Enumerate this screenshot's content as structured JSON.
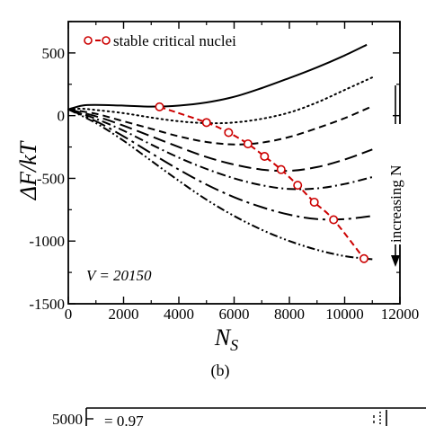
{
  "chart_data": {
    "type": "line",
    "title": "",
    "xlabel_main": "N",
    "xlabel_sub": "S",
    "ylabel": "ΔF/kT",
    "xlim": [
      0,
      12000
    ],
    "ylim": [
      -1500,
      750
    ],
    "x_ticks": [
      0,
      2000,
      4000,
      6000,
      8000,
      10000,
      12000
    ],
    "x_tick_labels": [
      "0",
      "2000",
      "4000",
      "6000",
      "8000",
      "10000",
      "12000"
    ],
    "y_ticks": [
      500,
      0,
      -500,
      -1000,
      -1500
    ],
    "y_tick_labels": [
      "500",
      "0",
      "-500",
      "-1000",
      "-1500"
    ],
    "grid": false,
    "legend": {
      "position": "top-left",
      "entries": [
        "stable critical nuclei"
      ]
    },
    "annotations": {
      "volume": "V = 20150",
      "arrow_label": "increasing N",
      "panel": "(b)"
    },
    "series": [
      {
        "style": "solid",
        "x": [
          0,
          500,
          1000,
          2000,
          3000,
          4000,
          5000,
          6000,
          7000,
          8000,
          9000,
          10000,
          10800
        ],
        "y": [
          50,
          80,
          85,
          80,
          72,
          80,
          105,
          150,
          220,
          300,
          385,
          480,
          565
        ]
      },
      {
        "style": "dotted",
        "x": [
          0,
          500,
          1000,
          2000,
          3000,
          4000,
          5000,
          6000,
          7000,
          8000,
          9000,
          10000,
          11000
        ],
        "y": [
          50,
          55,
          45,
          20,
          -15,
          -45,
          -60,
          -55,
          -25,
          25,
          105,
          205,
          305
        ]
      },
      {
        "style": "dashed",
        "x": [
          0,
          1000,
          2000,
          3000,
          4000,
          5000,
          6000,
          7000,
          8000,
          9000,
          10000,
          11000
        ],
        "y": [
          50,
          15,
          -45,
          -105,
          -165,
          -210,
          -230,
          -215,
          -170,
          -100,
          -20,
          75
        ]
      },
      {
        "style": "long-dashed",
        "x": [
          0,
          1000,
          2000,
          3000,
          4000,
          5000,
          6000,
          7000,
          8000,
          9000,
          10000,
          11000
        ],
        "y": [
          50,
          -5,
          -80,
          -165,
          -250,
          -330,
          -390,
          -430,
          -440,
          -410,
          -350,
          -270
        ]
      },
      {
        "style": "dash-dot",
        "x": [
          0,
          1000,
          2000,
          3000,
          4000,
          5000,
          6000,
          7000,
          8000,
          9000,
          10000,
          11000
        ],
        "y": [
          50,
          -25,
          -120,
          -230,
          -335,
          -425,
          -500,
          -555,
          -585,
          -580,
          -545,
          -490
        ]
      },
      {
        "style": "long-dash-dot",
        "x": [
          0,
          1000,
          2000,
          3000,
          4000,
          5000,
          6000,
          7000,
          8000,
          9000,
          10000,
          11000
        ],
        "y": [
          50,
          -45,
          -165,
          -300,
          -430,
          -550,
          -650,
          -730,
          -790,
          -825,
          -825,
          -800
        ]
      },
      {
        "style": "dash-dot-dot",
        "x": [
          0,
          1000,
          2000,
          3000,
          4000,
          5000,
          6000,
          7000,
          8000,
          9000,
          10000,
          11000
        ],
        "y": [
          50,
          -60,
          -200,
          -360,
          -520,
          -670,
          -800,
          -910,
          -1000,
          -1070,
          -1120,
          -1145
        ]
      }
    ],
    "critical_nuclei": {
      "name": "stable critical nuclei",
      "color": "#cc0000",
      "x": [
        3300,
        5000,
        5800,
        6500,
        7100,
        7700,
        8300,
        8900,
        9600,
        10700
      ],
      "y": [
        70,
        -55,
        -135,
        -225,
        -325,
        -430,
        -555,
        -690,
        -830,
        -1140
      ]
    }
  },
  "lower_panel": {
    "y_tick_top": "5000",
    "partial_label": "= 0.97"
  }
}
